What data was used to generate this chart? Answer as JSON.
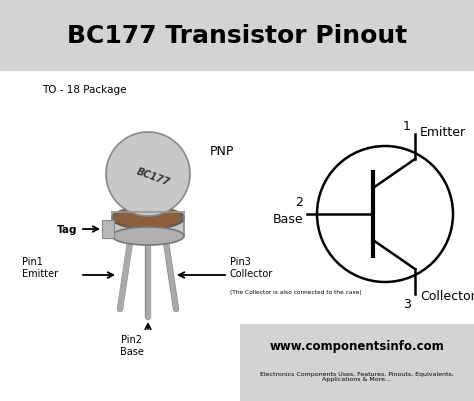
{
  "title": "BC177 Transistor Pinout",
  "title_fontsize": 18,
  "title_bg": "#d3d3d3",
  "body_bg": "#ffffff",
  "package_label": "TO - 18 Package",
  "pnp_label": "PNP",
  "tag_label": "Tag",
  "pin1_label": "Pin1\nEmitter",
  "pin2_label": "Pin2\nBase",
  "pin3_label": "Pin3\nCollector",
  "collector_note": "(The Collector is also connected to the case)",
  "emitter_label": "Emitter",
  "base_label": "Base",
  "collector_label": "Collector",
  "pin1_num": "1",
  "pin2_num": "2",
  "pin3_num": "3",
  "website": "www.componentsinfo.com",
  "website_sub": "Electronics Components Uses, Features, Pinouts, Equivalents,\nApplications & More...",
  "bc177_label": "BC177",
  "text_color": "#000000",
  "body_color": "#c8c8c8",
  "body_color2": "#b0b0b0",
  "base_brown": "#8B5E3C",
  "pin_color": "#aaaaaa",
  "pin_edge": "#888888",
  "tag_color": "#b8b8b8",
  "circle_color": "#000000",
  "website_bg": "#d3d3d3",
  "title_text_color": "#000000"
}
